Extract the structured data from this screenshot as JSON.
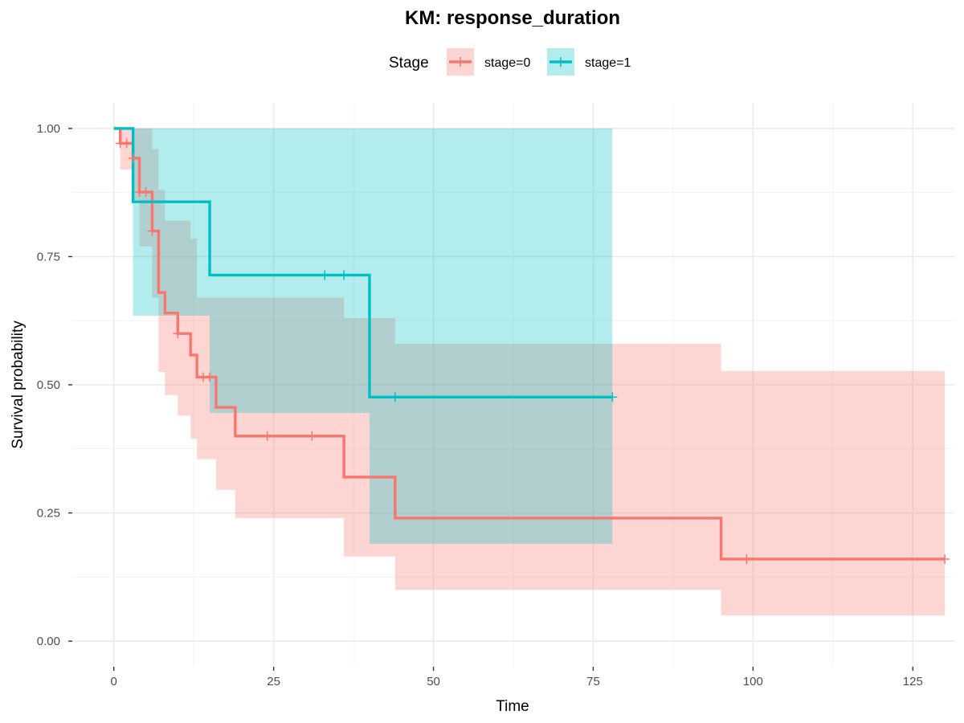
{
  "chart_data": {
    "type": "line",
    "subtype": "kaplan-meier step plot with confidence bands",
    "title": "KM: response_duration",
    "xlabel": "Time",
    "ylabel": "Survival probability",
    "xlim": [
      -6.5,
      131.5
    ],
    "ylim": [
      -0.05,
      1.05
    ],
    "x_ticks": [
      0,
      25,
      50,
      75,
      100,
      125
    ],
    "x_tick_labels": [
      "0",
      "25",
      "50",
      "75",
      "100",
      "125"
    ],
    "y_ticks": [
      0,
      0.25,
      0.5,
      0.75,
      1
    ],
    "y_tick_labels": [
      "0.00",
      "0.25",
      "0.50",
      "0.75",
      "1.00"
    ],
    "grid": true,
    "legend": {
      "title": "Stage",
      "position": "top"
    },
    "series": [
      {
        "name": "stage=0",
        "color": "#F8766D",
        "fill": "#F8766D",
        "fill_opacity": 0.3,
        "steps": [
          [
            0,
            1.0
          ],
          [
            1,
            0.971
          ],
          [
            3,
            0.942
          ],
          [
            4,
            0.876
          ],
          [
            6,
            0.8
          ],
          [
            7,
            0.68
          ],
          [
            8,
            0.64
          ],
          [
            10,
            0.6
          ],
          [
            12,
            0.558
          ],
          [
            13,
            0.515
          ],
          [
            16,
            0.456
          ],
          [
            19,
            0.4
          ],
          [
            36,
            0.32
          ],
          [
            44,
            0.24
          ],
          [
            95,
            0.16
          ],
          [
            130,
            0.16
          ]
        ],
        "ci_upper": [
          [
            0,
            1.0
          ],
          [
            2,
            1.0
          ],
          [
            3,
            1.0
          ],
          [
            4,
            1.0
          ],
          [
            6,
            0.96
          ],
          [
            7,
            0.88
          ],
          [
            8,
            0.82
          ],
          [
            10,
            0.82
          ],
          [
            12,
            0.785
          ],
          [
            13,
            0.67
          ],
          [
            19,
            0.67
          ],
          [
            36,
            0.63
          ],
          [
            44,
            0.58
          ],
          [
            95,
            0.527
          ],
          [
            130,
            0.527
          ]
        ],
        "ci_lower": [
          [
            0,
            1.0
          ],
          [
            1,
            0.92
          ],
          [
            3,
            0.86
          ],
          [
            4,
            0.77
          ],
          [
            6,
            0.67
          ],
          [
            7,
            0.525
          ],
          [
            8,
            0.48
          ],
          [
            10,
            0.44
          ],
          [
            12,
            0.395
          ],
          [
            13,
            0.355
          ],
          [
            16,
            0.295
          ],
          [
            19,
            0.24
          ],
          [
            36,
            0.165
          ],
          [
            44,
            0.1
          ],
          [
            95,
            0.05
          ],
          [
            130,
            0.05
          ]
        ],
        "censor_times": [
          1,
          2,
          3,
          4,
          5,
          6,
          10,
          14,
          15,
          24,
          31,
          99,
          130
        ]
      },
      {
        "name": "stage=1",
        "color": "#00BFC4",
        "fill": "#00BFC4",
        "fill_opacity": 0.3,
        "steps": [
          [
            0,
            1.0
          ],
          [
            3,
            0.857
          ],
          [
            15,
            0.714
          ],
          [
            40,
            0.476
          ],
          [
            78,
            0.476
          ]
        ],
        "ci_upper": [
          [
            0,
            1.0
          ],
          [
            3,
            1.0
          ],
          [
            15,
            1.0
          ],
          [
            40,
            1.0
          ],
          [
            78,
            1.0
          ]
        ],
        "ci_lower": [
          [
            0,
            1.0
          ],
          [
            3,
            0.635
          ],
          [
            15,
            0.445
          ],
          [
            40,
            0.19
          ],
          [
            78,
            0.19
          ]
        ],
        "censor_times": [
          33,
          36,
          44,
          78
        ]
      }
    ]
  }
}
